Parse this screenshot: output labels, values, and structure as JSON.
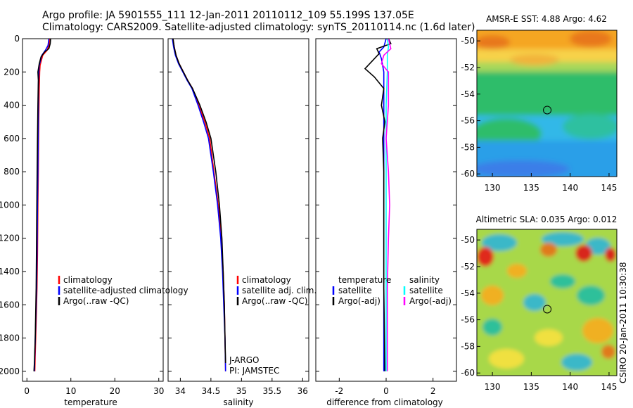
{
  "header": {
    "title_line1": "Argo profile: JA 5901555_111 12-Jan-2011 20110112_109 55.199S 137.05E",
    "title_line2": "Climatology: CARS2009. Satellite-adjusted climatology: synTS_20110114.nc (1.6d later)"
  },
  "stamp": "CSIRO 20-Jan-2011 10:30:38",
  "colors": {
    "climatology": "#ff0000",
    "satellite": "#0000ff",
    "argo": "#000000",
    "cyan": "#00ffff",
    "magenta": "#ff00ff"
  },
  "chart_data": [
    {
      "type": "line",
      "xlabel": "temperature",
      "xlim": [
        -1,
        31
      ],
      "ylim": [
        2060,
        0
      ],
      "xticks": [
        0,
        10,
        20,
        30
      ],
      "yticks": [
        0,
        200,
        400,
        600,
        800,
        1000,
        1200,
        1400,
        1600,
        1800,
        2000
      ],
      "legend": [
        "climatology",
        "satellite-adjusted climatology",
        "Argo(..raw -QC)"
      ],
      "series": [
        {
          "name": "climatology",
          "color": "#ff0000",
          "points": [
            [
              5.2,
              0
            ],
            [
              5.0,
              40
            ],
            [
              4.6,
              70
            ],
            [
              3.6,
              100
            ],
            [
              3.0,
              160
            ],
            [
              2.9,
              200
            ],
            [
              2.8,
              300
            ],
            [
              2.7,
              500
            ],
            [
              2.6,
              800
            ],
            [
              2.5,
              1000
            ],
            [
              2.4,
              1300
            ],
            [
              2.3,
              1500
            ],
            [
              2.1,
              1700
            ],
            [
              1.9,
              1900
            ],
            [
              1.8,
              2000
            ]
          ]
        },
        {
          "name": "satellite-adjusted climatology",
          "color": "#0000ff",
          "points": [
            [
              5.0,
              0
            ],
            [
              4.8,
              40
            ],
            [
              4.2,
              70
            ],
            [
              3.4,
              100
            ],
            [
              2.8,
              160
            ],
            [
              2.7,
              200
            ],
            [
              2.6,
              300
            ],
            [
              2.6,
              500
            ],
            [
              2.5,
              800
            ],
            [
              2.4,
              1000
            ],
            [
              2.3,
              1300
            ],
            [
              2.2,
              1500
            ],
            [
              2.0,
              1700
            ],
            [
              1.8,
              1900
            ],
            [
              1.7,
              2000
            ]
          ]
        },
        {
          "name": "Argo(..raw -QC)",
          "color": "#000000",
          "points": [
            [
              5.4,
              0
            ],
            [
              5.3,
              30
            ],
            [
              5.0,
              60
            ],
            [
              4.0,
              80
            ],
            [
              3.2,
              110
            ],
            [
              2.8,
              150
            ],
            [
              2.5,
              200
            ],
            [
              2.6,
              250
            ],
            [
              2.5,
              400
            ],
            [
              2.4,
              600
            ],
            [
              2.3,
              900
            ],
            [
              2.2,
              1200
            ],
            [
              2.1,
              1500
            ],
            [
              1.9,
              1800
            ],
            [
              1.7,
              1950
            ],
            [
              1.6,
              2000
            ]
          ]
        }
      ]
    },
    {
      "type": "line",
      "xlabel": "salinity",
      "xlim": [
        33.8,
        36.1
      ],
      "ylim": [
        2060,
        0
      ],
      "xticks": [
        34,
        34.5,
        35,
        35.5,
        36
      ],
      "legend": [
        "climatology",
        "satellite adj. clim.",
        "Argo(..raw -QC)"
      ],
      "annotation": [
        "J-ARGO",
        "PI: JAMSTEC"
      ],
      "series": [
        {
          "name": "climatology",
          "color": "#ff0000",
          "points": [
            [
              33.88,
              0
            ],
            [
              33.9,
              50
            ],
            [
              33.93,
              100
            ],
            [
              33.98,
              150
            ],
            [
              34.05,
              200
            ],
            [
              34.12,
              250
            ],
            [
              34.2,
              300
            ],
            [
              34.3,
              400
            ],
            [
              34.4,
              500
            ],
            [
              34.48,
              600
            ],
            [
              34.55,
              800
            ],
            [
              34.62,
              1000
            ],
            [
              34.67,
              1200
            ],
            [
              34.7,
              1400
            ],
            [
              34.72,
              1600
            ],
            [
              34.73,
              1800
            ],
            [
              34.74,
              2000
            ]
          ]
        },
        {
          "name": "satellite adj. clim.",
          "color": "#0000ff",
          "points": [
            [
              33.87,
              0
            ],
            [
              33.89,
              50
            ],
            [
              33.92,
              100
            ],
            [
              33.97,
              150
            ],
            [
              34.04,
              200
            ],
            [
              34.11,
              250
            ],
            [
              34.19,
              300
            ],
            [
              34.29,
              400
            ],
            [
              34.38,
              500
            ],
            [
              34.46,
              600
            ],
            [
              34.54,
              800
            ],
            [
              34.61,
              1000
            ],
            [
              34.66,
              1200
            ],
            [
              34.69,
              1400
            ],
            [
              34.71,
              1600
            ],
            [
              34.73,
              1800
            ],
            [
              34.74,
              2000
            ]
          ]
        },
        {
          "name": "Argo(..raw -QC)",
          "color": "#000000",
          "points": [
            [
              33.88,
              0
            ],
            [
              33.9,
              50
            ],
            [
              33.93,
              100
            ],
            [
              33.98,
              150
            ],
            [
              34.05,
              200
            ],
            [
              34.12,
              250
            ],
            [
              34.2,
              300
            ],
            [
              34.32,
              400
            ],
            [
              34.42,
              500
            ],
            [
              34.5,
              600
            ],
            [
              34.58,
              800
            ],
            [
              34.64,
              1000
            ],
            [
              34.68,
              1200
            ],
            [
              34.7,
              1400
            ],
            [
              34.72,
              1600
            ],
            [
              34.73,
              1800
            ],
            [
              34.74,
              1950
            ]
          ]
        }
      ]
    },
    {
      "type": "line",
      "xlabel": "difference from climatology",
      "xlim": [
        -3,
        3
      ],
      "ylim": [
        2060,
        0
      ],
      "xticks": [
        -2,
        0,
        2
      ],
      "legend_left_title": "temperature",
      "legend_left": [
        "satellite",
        "Argo(-adj)"
      ],
      "legend_right_title": "salinity",
      "legend_right": [
        "satellite",
        "Argo(-adj)"
      ],
      "series": [
        {
          "name": "temperature satellite",
          "color": "#0000ff",
          "points": [
            [
              0.0,
              0
            ],
            [
              -0.1,
              50
            ],
            [
              -0.3,
              80
            ],
            [
              -0.2,
              120
            ],
            [
              -0.1,
              200
            ],
            [
              -0.1,
              400
            ],
            [
              -0.1,
              600
            ],
            [
              -0.1,
              800
            ],
            [
              -0.1,
              1000
            ],
            [
              -0.1,
              1500
            ],
            [
              -0.1,
              2000
            ]
          ]
        },
        {
          "name": "temperature Argo(-adj)",
          "color": "#000000",
          "points": [
            [
              0.1,
              0
            ],
            [
              0.2,
              30
            ],
            [
              -0.4,
              60
            ],
            [
              -0.3,
              90
            ],
            [
              -0.9,
              180
            ],
            [
              -0.5,
              230
            ],
            [
              -0.1,
              300
            ],
            [
              -0.2,
              400
            ],
            [
              -0.05,
              500
            ],
            [
              -0.15,
              600
            ],
            [
              -0.1,
              800
            ],
            [
              -0.1,
              1000
            ],
            [
              -0.1,
              1500
            ],
            [
              -0.05,
              2000
            ]
          ]
        },
        {
          "name": "salinity satellite",
          "color": "#00ffff",
          "points": [
            [
              0.05,
              0
            ],
            [
              0.1,
              50
            ],
            [
              0.05,
              100
            ],
            [
              0.05,
              200
            ],
            [
              0.0,
              400
            ],
            [
              0.0,
              800
            ],
            [
              0.0,
              1200
            ],
            [
              0.0,
              1600
            ],
            [
              0.0,
              2000
            ]
          ]
        },
        {
          "name": "salinity Argo(-adj)",
          "color": "#ff00ff",
          "points": [
            [
              0.1,
              0
            ],
            [
              0.2,
              60
            ],
            [
              -0.1,
              100
            ],
            [
              -0.2,
              150
            ],
            [
              0.1,
              200
            ],
            [
              0.1,
              400
            ],
            [
              0.0,
              600
            ],
            [
              0.1,
              800
            ],
            [
              0.15,
              1000
            ],
            [
              0.1,
              1200
            ],
            [
              0.05,
              1500
            ],
            [
              0.05,
              2000
            ]
          ]
        }
      ]
    },
    {
      "type": "heatmap",
      "title": "AMSR-E SST: 4.88 Argo: 4.62",
      "xticks": [
        130,
        135,
        140,
        145
      ],
      "yticks": [
        -50,
        -52,
        -54,
        -56,
        -58,
        -60
      ],
      "xlim": [
        128,
        146
      ],
      "ylim": [
        -60.2,
        -49.2
      ],
      "marker": [
        137.05,
        -55.2
      ]
    },
    {
      "type": "heatmap",
      "title": "Altimetric SLA: 0.035 Argo: 0.012",
      "xticks": [
        130,
        135,
        140,
        145
      ],
      "yticks": [
        -50,
        -52,
        -54,
        -56,
        -58,
        -60
      ],
      "xlim": [
        128,
        146
      ],
      "ylim": [
        -60.2,
        -49.2
      ],
      "marker": [
        137.05,
        -55.2
      ]
    }
  ]
}
